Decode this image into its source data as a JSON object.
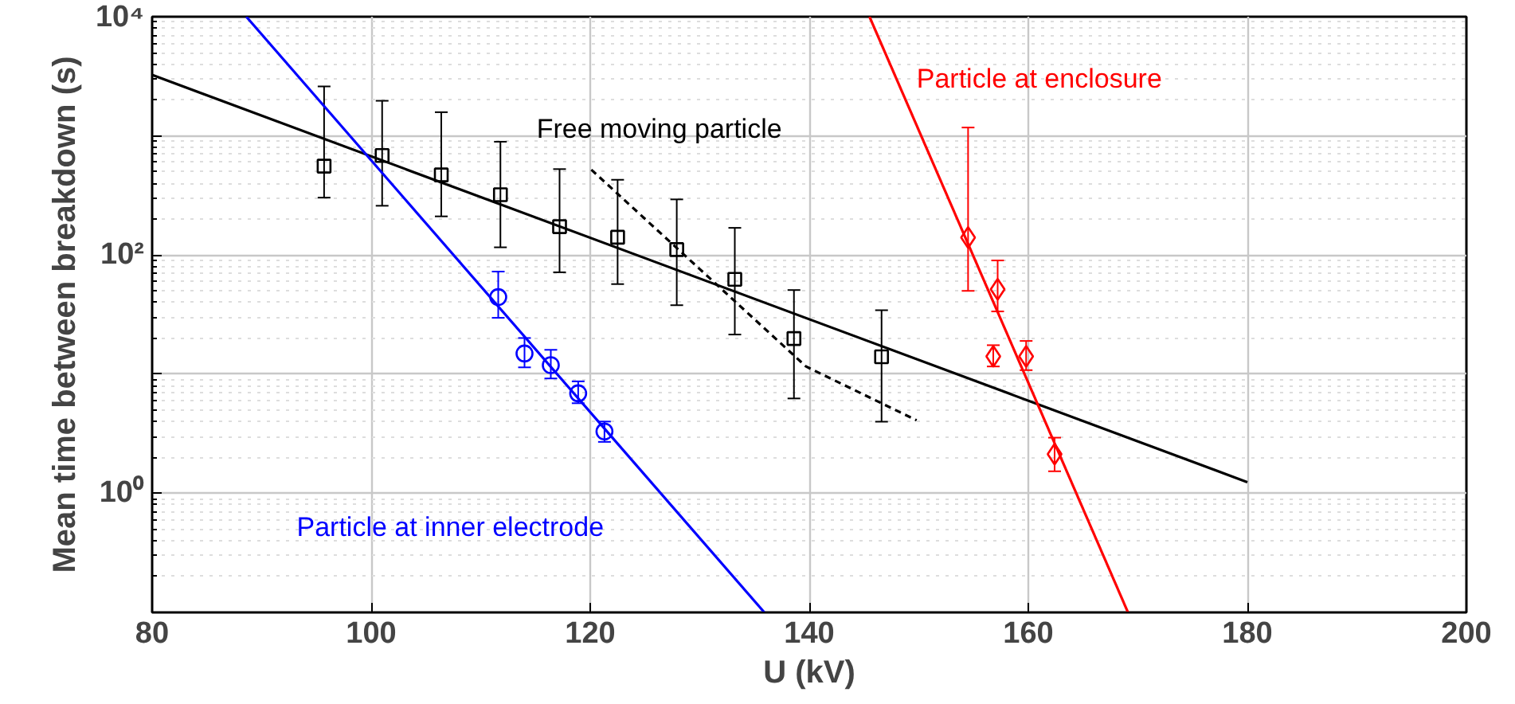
{
  "chart_data": {
    "type": "scatter",
    "xlabel": "U (kV)",
    "ylabel": "Mean time between breakdown (s)",
    "log": "y",
    "grid": true,
    "xlim": [
      80,
      200
    ],
    "xticks": [
      80,
      100,
      120,
      140,
      160,
      180,
      200
    ],
    "ylim": [
      0.1,
      10000
    ],
    "yticks": [
      {
        "value": 0.1,
        "label": null
      },
      {
        "value": 1,
        "label": "10⁰"
      },
      {
        "value": 10,
        "label": null
      },
      {
        "value": 100,
        "label": "10²"
      },
      {
        "value": 1000,
        "label": null
      },
      {
        "value": 10000,
        "label": "10⁴"
      }
    ],
    "series": [
      {
        "name": "Free moving particle",
        "marker": "square",
        "color": "#000000",
        "x": [
          95.7,
          101.0,
          106.4,
          111.8,
          117.2,
          122.5,
          127.9,
          133.2,
          138.6,
          146.6
        ],
        "values": [
          557,
          685,
          470,
          321,
          173,
          141,
          111,
          62.5,
          19.9,
          14.0
        ],
        "errors": [
          [
            303,
            2600
          ],
          [
            259,
            1970
          ],
          [
            211,
            1580
          ],
          [
            116,
            893
          ],
          [
            71.6,
            526
          ],
          [
            57,
            428
          ],
          [
            37.9,
            293
          ],
          [
            21.5,
            169
          ],
          [
            6.25,
            50.8
          ],
          [
            3.99,
            34.4
          ]
        ]
      },
      {
        "name": "Particle at inner electrode",
        "marker": "circle",
        "color": "#0000ff",
        "x": [
          111.6,
          114.0,
          116.4,
          118.9,
          121.3
        ],
        "values": [
          44.3,
          14.9,
          11.9,
          6.9,
          3.3
        ],
        "errors": [
          [
            29.7,
            72.6
          ],
          [
            11.4,
            20.1
          ],
          [
            9.2,
            16.0
          ],
          [
            5.7,
            8.7
          ],
          [
            2.7,
            4.0
          ]
        ]
      },
      {
        "name": "Particle at enclosure",
        "marker": "diamond",
        "color": "#ff0000",
        "x": [
          154.5,
          157.2,
          156.8,
          159.8,
          162.4
        ],
        "values": [
          140,
          51.5,
          14.1,
          14.1,
          2.13
        ],
        "errors": [
          [
            50,
            1175
          ],
          [
            33.6,
            90
          ],
          [
            11.6,
            17.5
          ],
          [
            10.8,
            19.0
          ],
          [
            1.53,
            2.93
          ]
        ]
      },
      {
        "type": "line",
        "line_style": "solid",
        "color": "#000000",
        "x": [
          80,
          180
        ],
        "values": [
          3250,
          1.24
        ]
      },
      {
        "type": "line",
        "line_style": "solid",
        "color": "#0000ff",
        "x": [
          88.6,
          135.9
        ],
        "values": [
          10000,
          0.1
        ]
      },
      {
        "type": "line",
        "line_style": "solid",
        "color": "#ff0000",
        "x": [
          145.5,
          169.1
        ],
        "values": [
          10000,
          0.1
        ]
      },
      {
        "type": "line",
        "line_style": "dashed",
        "color": "#000000",
        "x": [
          120.1,
          139.7,
          149.8
        ],
        "values": [
          520,
          11.6,
          4.1
        ]
      }
    ]
  }
}
